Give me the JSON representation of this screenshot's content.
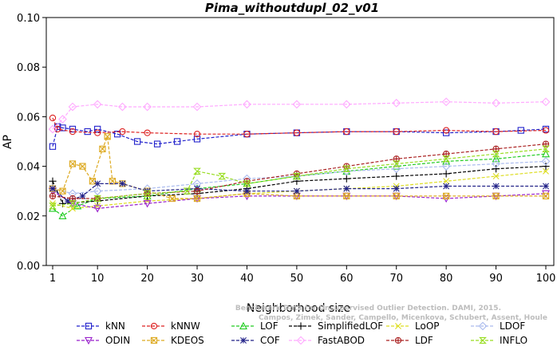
{
  "chart_data": {
    "type": "line",
    "title": "Pima_withoutdupl_02_v01",
    "xlabel": "Neighborhood size",
    "ylabel": "AP",
    "xlim": [
      1,
      100
    ],
    "ylim": [
      0.0,
      0.1
    ],
    "xticks": [
      "1",
      "10",
      "20",
      "30",
      "40",
      "50",
      "60",
      "70",
      "80",
      "90",
      "100"
    ],
    "yticks": [
      "0.00",
      "0.02",
      "0.04",
      "0.06",
      "0.08",
      "0.10"
    ],
    "grid": false,
    "legend_position": "bottom",
    "watermark": [
      "Benchmark Data for Unsupervised Outlier Detection. DAMI, 2015.",
      "Campos, Zimek, Sander, Campello, Micenkova, Schubert, Assent, Houle"
    ],
    "series": [
      {
        "name": "kNN",
        "color": "#2222cc",
        "marker": "square",
        "points": [
          [
            1,
            0.048
          ],
          [
            2,
            0.056
          ],
          [
            3,
            0.0555
          ],
          [
            5,
            0.055
          ],
          [
            8,
            0.054
          ],
          [
            10,
            0.055
          ],
          [
            14,
            0.053
          ],
          [
            18,
            0.05
          ],
          [
            22,
            0.049
          ],
          [
            26,
            0.05
          ],
          [
            30,
            0.051
          ],
          [
            40,
            0.053
          ],
          [
            50,
            0.0535
          ],
          [
            60,
            0.054
          ],
          [
            70,
            0.054
          ],
          [
            80,
            0.0535
          ],
          [
            90,
            0.054
          ],
          [
            95,
            0.0545
          ],
          [
            100,
            0.055
          ]
        ]
      },
      {
        "name": "kNNW",
        "color": "#dd2222",
        "marker": "circle",
        "points": [
          [
            1,
            0.0595
          ],
          [
            2,
            0.055
          ],
          [
            5,
            0.054
          ],
          [
            10,
            0.0535
          ],
          [
            15,
            0.054
          ],
          [
            20,
            0.0535
          ],
          [
            30,
            0.053
          ],
          [
            40,
            0.053
          ],
          [
            50,
            0.0535
          ],
          [
            60,
            0.054
          ],
          [
            70,
            0.054
          ],
          [
            80,
            0.0545
          ],
          [
            90,
            0.054
          ],
          [
            100,
            0.0545
          ]
        ]
      },
      {
        "name": "LOF",
        "color": "#22cc22",
        "marker": "triangle-up",
        "points": [
          [
            1,
            0.023
          ],
          [
            3,
            0.02
          ],
          [
            6,
            0.024
          ],
          [
            10,
            0.027
          ],
          [
            20,
            0.028
          ],
          [
            30,
            0.031
          ],
          [
            40,
            0.033
          ],
          [
            50,
            0.036
          ],
          [
            60,
            0.038
          ],
          [
            70,
            0.04
          ],
          [
            80,
            0.042
          ],
          [
            90,
            0.043
          ],
          [
            100,
            0.045
          ]
        ]
      },
      {
        "name": "SimplifiedLOF",
        "color": "#000000",
        "marker": "plus",
        "points": [
          [
            1,
            0.034
          ],
          [
            3,
            0.025
          ],
          [
            10,
            0.026
          ],
          [
            20,
            0.028
          ],
          [
            30,
            0.029
          ],
          [
            40,
            0.031
          ],
          [
            50,
            0.034
          ],
          [
            60,
            0.035
          ],
          [
            70,
            0.036
          ],
          [
            80,
            0.037
          ],
          [
            90,
            0.039
          ],
          [
            100,
            0.04
          ]
        ]
      },
      {
        "name": "LoOP",
        "color": "#dddd22",
        "marker": "cross",
        "points": [
          [
            1,
            0.025
          ],
          [
            5,
            0.023
          ],
          [
            10,
            0.024
          ],
          [
            20,
            0.026
          ],
          [
            30,
            0.027
          ],
          [
            40,
            0.029
          ],
          [
            50,
            0.03
          ],
          [
            60,
            0.031
          ],
          [
            70,
            0.032
          ],
          [
            80,
            0.034
          ],
          [
            90,
            0.036
          ],
          [
            100,
            0.038
          ]
        ]
      },
      {
        "name": "LDOF",
        "color": "#aabbee",
        "marker": "diamond",
        "points": [
          [
            1,
            0.031
          ],
          [
            5,
            0.029
          ],
          [
            10,
            0.03
          ],
          [
            20,
            0.031
          ],
          [
            30,
            0.033
          ],
          [
            40,
            0.035
          ],
          [
            50,
            0.036
          ],
          [
            60,
            0.038
          ],
          [
            70,
            0.039
          ],
          [
            80,
            0.04
          ],
          [
            90,
            0.041
          ],
          [
            100,
            0.042
          ]
        ]
      },
      {
        "name": "ODIN",
        "color": "#9922cc",
        "marker": "triangle-down",
        "points": [
          [
            1,
            0.03
          ],
          [
            5,
            0.025
          ],
          [
            10,
            0.023
          ],
          [
            20,
            0.025
          ],
          [
            30,
            0.027
          ],
          [
            40,
            0.028
          ],
          [
            50,
            0.028
          ],
          [
            60,
            0.028
          ],
          [
            70,
            0.028
          ],
          [
            80,
            0.027
          ],
          [
            90,
            0.028
          ],
          [
            100,
            0.029
          ]
        ]
      },
      {
        "name": "KDEOS",
        "color": "#ddaa22",
        "marker": "square-x",
        "points": [
          [
            1,
            0.031
          ],
          [
            3,
            0.03
          ],
          [
            5,
            0.041
          ],
          [
            7,
            0.04
          ],
          [
            9,
            0.034
          ],
          [
            11,
            0.047
          ],
          [
            12,
            0.052
          ],
          [
            13,
            0.034
          ],
          [
            15,
            0.033
          ],
          [
            20,
            0.03
          ],
          [
            25,
            0.027
          ],
          [
            30,
            0.027
          ],
          [
            40,
            0.029
          ],
          [
            50,
            0.028
          ],
          [
            60,
            0.028
          ],
          [
            70,
            0.028
          ],
          [
            80,
            0.028
          ],
          [
            90,
            0.028
          ],
          [
            100,
            0.028
          ]
        ]
      },
      {
        "name": "COF",
        "color": "#222288",
        "marker": "asterisk",
        "points": [
          [
            1,
            0.031
          ],
          [
            4,
            0.026
          ],
          [
            7,
            0.028
          ],
          [
            10,
            0.033
          ],
          [
            15,
            0.033
          ],
          [
            20,
            0.03
          ],
          [
            30,
            0.031
          ],
          [
            40,
            0.03
          ],
          [
            50,
            0.03
          ],
          [
            60,
            0.031
          ],
          [
            70,
            0.031
          ],
          [
            80,
            0.032
          ],
          [
            90,
            0.032
          ],
          [
            100,
            0.032
          ]
        ]
      },
      {
        "name": "FastABOD",
        "color": "#ffaaff",
        "marker": "diamond",
        "points": [
          [
            1,
            0.055
          ],
          [
            3,
            0.059
          ],
          [
            5,
            0.064
          ],
          [
            10,
            0.065
          ],
          [
            15,
            0.064
          ],
          [
            20,
            0.064
          ],
          [
            30,
            0.064
          ],
          [
            40,
            0.065
          ],
          [
            50,
            0.065
          ],
          [
            60,
            0.065
          ],
          [
            70,
            0.0655
          ],
          [
            80,
            0.066
          ],
          [
            90,
            0.0655
          ],
          [
            100,
            0.066
          ]
        ]
      },
      {
        "name": "LDF",
        "color": "#aa2222",
        "marker": "circle-plus",
        "points": [
          [
            1,
            0.028
          ],
          [
            5,
            0.027
          ],
          [
            10,
            0.027
          ],
          [
            20,
            0.029
          ],
          [
            30,
            0.03
          ],
          [
            40,
            0.034
          ],
          [
            50,
            0.037
          ],
          [
            60,
            0.04
          ],
          [
            70,
            0.043
          ],
          [
            80,
            0.045
          ],
          [
            90,
            0.047
          ],
          [
            100,
            0.049
          ]
        ]
      },
      {
        "name": "INFLO",
        "color": "#99dd22",
        "marker": "hourglass",
        "points": [
          [
            1,
            0.024
          ],
          [
            5,
            0.025
          ],
          [
            10,
            0.027
          ],
          [
            20,
            0.029
          ],
          [
            28,
            0.03
          ],
          [
            30,
            0.038
          ],
          [
            35,
            0.036
          ],
          [
            40,
            0.033
          ],
          [
            50,
            0.036
          ],
          [
            60,
            0.039
          ],
          [
            70,
            0.041
          ],
          [
            80,
            0.043
          ],
          [
            90,
            0.045
          ],
          [
            100,
            0.047
          ]
        ]
      }
    ]
  }
}
